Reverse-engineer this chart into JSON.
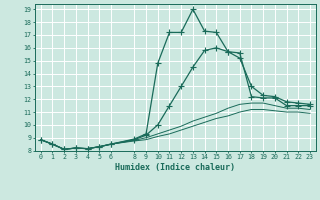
{
  "xlabel": "Humidex (Indice chaleur)",
  "bg_color": "#cce8e0",
  "grid_color": "#ffffff",
  "line_color": "#1a6b5a",
  "xlim": [
    -0.5,
    23.5
  ],
  "ylim": [
    8,
    19.4
  ],
  "yticks": [
    8,
    9,
    10,
    11,
    12,
    13,
    14,
    15,
    16,
    17,
    18,
    19
  ],
  "xticks": [
    0,
    1,
    2,
    3,
    4,
    5,
    6,
    8,
    9,
    10,
    11,
    12,
    13,
    14,
    15,
    16,
    17,
    18,
    19,
    20,
    21,
    22,
    23
  ],
  "line_peak_x": [
    0,
    1,
    2,
    3,
    4,
    5,
    6,
    8,
    9,
    10,
    11,
    12,
    13,
    14,
    15,
    16,
    17,
    18,
    19,
    20,
    21,
    22,
    23
  ],
  "line_peak_y": [
    8.85,
    8.5,
    8.1,
    8.2,
    8.15,
    8.3,
    8.5,
    8.9,
    9.3,
    14.8,
    17.2,
    17.2,
    19.0,
    17.3,
    17.2,
    15.7,
    15.6,
    12.2,
    12.1,
    12.1,
    11.5,
    11.5,
    11.5
  ],
  "line_upper_x": [
    0,
    1,
    2,
    3,
    4,
    5,
    6,
    8,
    9,
    10,
    11,
    12,
    13,
    14,
    15,
    16,
    17,
    18,
    19,
    20,
    21,
    22,
    23
  ],
  "line_upper_y": [
    8.85,
    8.5,
    8.1,
    8.2,
    8.15,
    8.3,
    8.5,
    8.85,
    9.2,
    10.0,
    11.5,
    13.0,
    14.5,
    15.8,
    16.0,
    15.7,
    15.2,
    13.0,
    12.3,
    12.2,
    11.8,
    11.7,
    11.6
  ],
  "line_low1_x": [
    0,
    1,
    2,
    3,
    4,
    5,
    6,
    8,
    9,
    10,
    11,
    12,
    13,
    14,
    15,
    16,
    17,
    18,
    19,
    20,
    21,
    22,
    23
  ],
  "line_low1_y": [
    8.85,
    8.5,
    8.1,
    8.2,
    8.15,
    8.3,
    8.5,
    8.8,
    9.0,
    9.3,
    9.6,
    9.9,
    10.3,
    10.6,
    10.9,
    11.3,
    11.6,
    11.7,
    11.7,
    11.5,
    11.3,
    11.3,
    11.2
  ],
  "line_low2_x": [
    0,
    1,
    2,
    3,
    4,
    5,
    6,
    8,
    9,
    10,
    11,
    12,
    13,
    14,
    15,
    16,
    17,
    18,
    19,
    20,
    21,
    22,
    23
  ],
  "line_low2_y": [
    8.85,
    8.5,
    8.1,
    8.2,
    8.15,
    8.3,
    8.5,
    8.75,
    8.85,
    9.1,
    9.3,
    9.6,
    9.9,
    10.2,
    10.5,
    10.7,
    11.0,
    11.2,
    11.2,
    11.1,
    11.0,
    11.0,
    10.9
  ]
}
